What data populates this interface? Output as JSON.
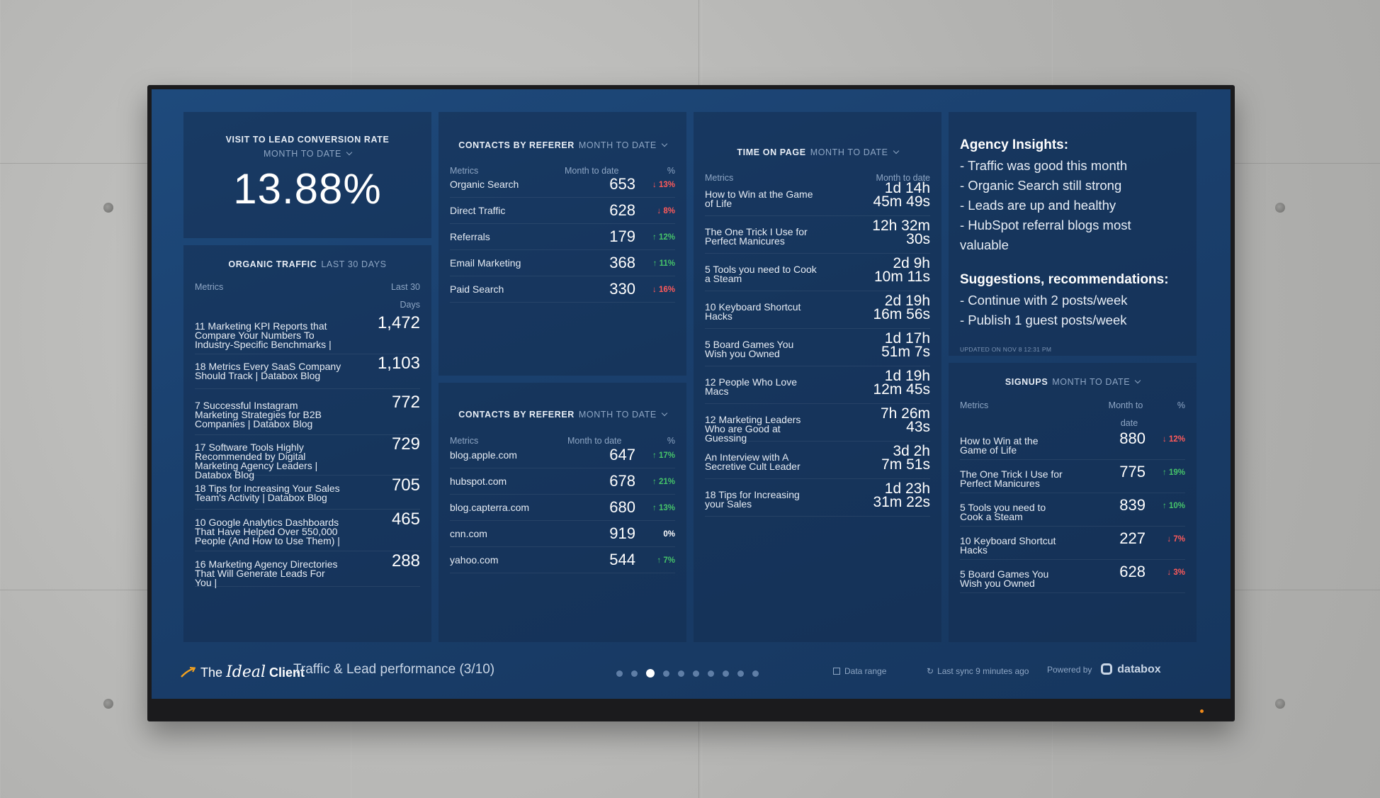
{
  "conversion": {
    "title": "VISIT TO LEAD CONVERSION RATE",
    "period": "MONTH TO DATE",
    "value": "13.88%"
  },
  "organic": {
    "title": "ORGANIC TRAFFIC",
    "period": "LAST 30 DAYS",
    "col_metrics": "Metrics",
    "col_value_1": "Last 30",
    "col_value_2": "Days",
    "rows": [
      {
        "name": "11 Marketing KPI Reports that Compare Your Numbers To Industry-Specific Benchmarks |",
        "value": "1,472"
      },
      {
        "name": "18 Metrics Every SaaS Company Should Track | Databox Blog",
        "value": "1,103"
      },
      {
        "name": "7 Successful Instagram Marketing Strategies for B2B Companies | Databox Blog",
        "value": "772"
      },
      {
        "name": "17 Software Tools Highly Recommended by Digital Marketing Agency Leaders | Databox Blog",
        "value": "729"
      },
      {
        "name": "18 Tips for Increasing Your Sales Team's Activity | Databox Blog",
        "value": "705"
      },
      {
        "name": "10 Google Analytics Dashboards That Have Helped Over 550,000 People (And How to Use Them) |",
        "value": "465"
      },
      {
        "name": "16 Marketing Agency Directories That Will Generate Leads For You |",
        "value": "288"
      }
    ]
  },
  "referer1": {
    "title": "CONTACTS BY REFERER",
    "period": "MONTH TO DATE",
    "col_metrics": "Metrics",
    "col_value": "Month to date",
    "col_pct": "%",
    "rows": [
      {
        "name": "Organic Search",
        "value": "653",
        "pct": "13%",
        "dir": "down"
      },
      {
        "name": "Direct Traffic",
        "value": "628",
        "pct": "8%",
        "dir": "down"
      },
      {
        "name": "Referrals",
        "value": "179",
        "pct": "12%",
        "dir": "up"
      },
      {
        "name": "Email Marketing",
        "value": "368",
        "pct": "11%",
        "dir": "up"
      },
      {
        "name": "Paid Search",
        "value": "330",
        "pct": "16%",
        "dir": "down"
      }
    ]
  },
  "referer2": {
    "title": "CONTACTS BY REFERER",
    "period": "MONTH TO DATE",
    "col_metrics": "Metrics",
    "col_value": "Month to date",
    "col_pct": "%",
    "rows": [
      {
        "name": "blog.apple.com",
        "value": "647",
        "pct": "17%",
        "dir": "up"
      },
      {
        "name": "hubspot.com",
        "value": "678",
        "pct": "21%",
        "dir": "up"
      },
      {
        "name": "blog.capterra.com",
        "value": "680",
        "pct": "13%",
        "dir": "up"
      },
      {
        "name": "cnn.com",
        "value": "919",
        "pct": "0%",
        "dir": "flat"
      },
      {
        "name": "yahoo.com",
        "value": "544",
        "pct": "7%",
        "dir": "up"
      }
    ]
  },
  "timeonpage": {
    "title": "TIME ON PAGE",
    "period": "MONTH TO DATE",
    "col_metrics": "Metrics",
    "col_value": "Month to date",
    "rows": [
      {
        "name": "How to Win at the Game of Life",
        "v1": "1d 14h",
        "v2": "45m 49s"
      },
      {
        "name": "The One Trick I Use for Perfect Manicures",
        "v1": "12h 32m",
        "v2": "30s"
      },
      {
        "name": "5 Tools you need to Cook a Steam",
        "v1": "2d 9h",
        "v2": "10m 11s"
      },
      {
        "name": "10 Keyboard Shortcut Hacks",
        "v1": "2d 19h",
        "v2": "16m 56s"
      },
      {
        "name": "5 Board Games You Wish you Owned",
        "v1": "1d 17h",
        "v2": "51m 7s"
      },
      {
        "name": "12 People Who Love Macs",
        "v1": "1d 19h",
        "v2": "12m 45s"
      },
      {
        "name": "12 Marketing Leaders Who are Good at Guessing",
        "v1": "7h 26m",
        "v2": "43s"
      },
      {
        "name": "An Interview with A Secretive Cult Leader",
        "v1": "3d 2h",
        "v2": "7m 51s"
      },
      {
        "name": "18 Tips for Increasing your Sales",
        "v1": "1d 23h",
        "v2": "31m 22s"
      }
    ]
  },
  "insights": {
    "heading1": "Agency Insights:",
    "items1": [
      "- Traffic was good this month",
      "- Organic Search still strong",
      "- Leads are up and healthy",
      "- HubSpot referral blogs most",
      "valuable"
    ],
    "heading2": "Suggestions, recommendations:",
    "items2": [
      "- Continue with 2 posts/week",
      "- Publish 1 guest posts/week"
    ],
    "updated": "UPDATED ON NOV 8 12:31 PM"
  },
  "signups": {
    "title": "SIGNUPS",
    "period": "MONTH TO DATE",
    "col_metrics": "Metrics",
    "col_value_1": "Month to",
    "col_value_2": "date",
    "col_pct": "%",
    "rows": [
      {
        "name": "How to Win at the Game of Life",
        "value": "880",
        "pct": "12%",
        "dir": "down"
      },
      {
        "name": "The One Trick I Use for Perfect Manicures",
        "value": "775",
        "pct": "19%",
        "dir": "up"
      },
      {
        "name": "5 Tools you need to Cook a Steam",
        "value": "839",
        "pct": "10%",
        "dir": "up"
      },
      {
        "name": "10 Keyboard Shortcut Hacks",
        "value": "227",
        "pct": "7%",
        "dir": "down"
      },
      {
        "name": "5 Board Games You Wish you Owned",
        "value": "628",
        "pct": "3%",
        "dir": "down"
      }
    ]
  },
  "footer": {
    "brand_the": "The",
    "brand_ideal": "Ideal",
    "brand_client": "Client",
    "board_title": "Traffic & Lead performance (3/10)",
    "dots_total": 10,
    "dots_active": 3,
    "data_range": "Data range",
    "last_sync": "Last sync 9 minutes ago",
    "powered_by": "Powered by",
    "vendor": "databox"
  },
  "colors": {
    "up": "#46c46a",
    "down": "#ff5a5a",
    "accent": "#f0a020"
  }
}
